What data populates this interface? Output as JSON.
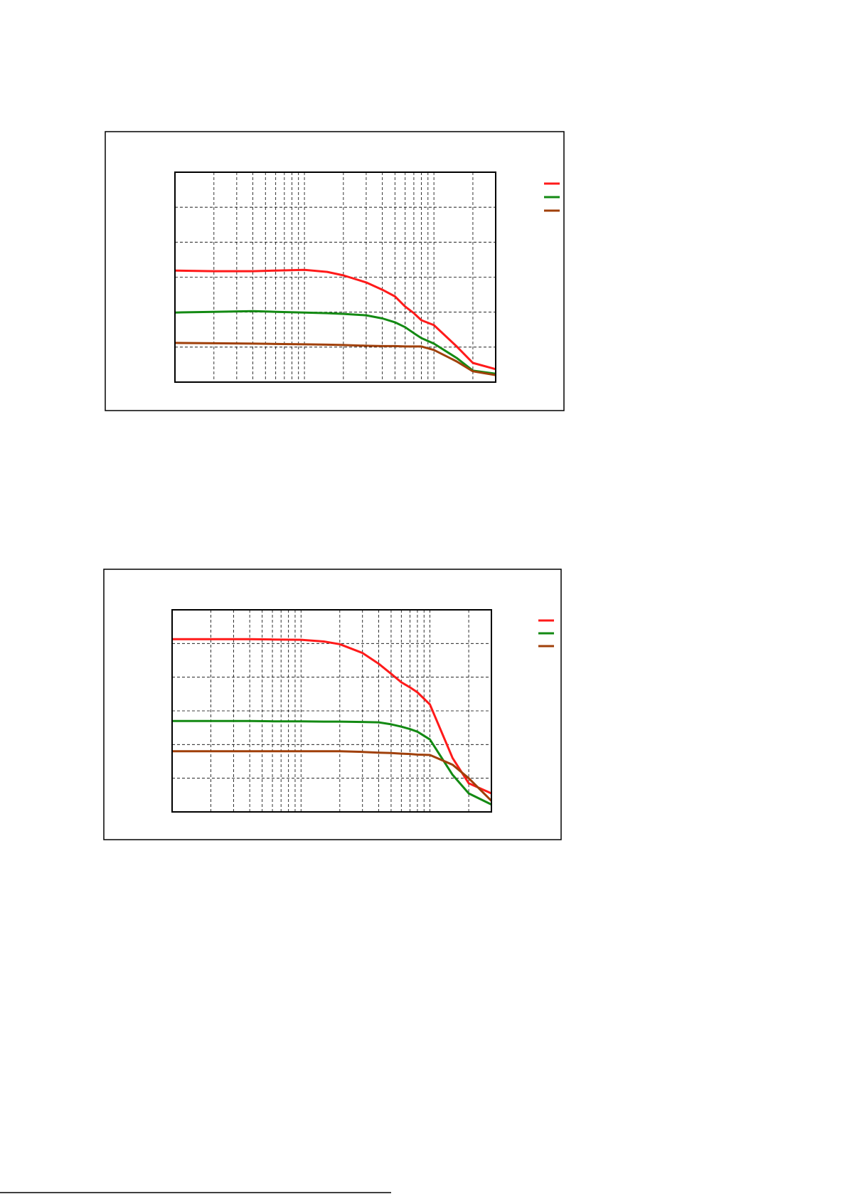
{
  "chart_data": [
    {
      "type": "line",
      "log_x": true,
      "grid": true,
      "legend": "right",
      "xlim": [
        1,
        300
      ],
      "ylim": [
        0,
        6
      ],
      "xticks": [
        2,
        3,
        4,
        5,
        6,
        7,
        8,
        9,
        10,
        20,
        30,
        40,
        50,
        60,
        70,
        80,
        90,
        100,
        200
      ],
      "yticks": [
        1,
        2,
        3,
        4,
        5
      ],
      "x": [
        1,
        2,
        4,
        6,
        10,
        15,
        20,
        30,
        40,
        50,
        60,
        70,
        80,
        100,
        150,
        200,
        300
      ],
      "series": [
        {
          "color": "#ff1a1a",
          "values": [
            3.19,
            3.17,
            3.17,
            3.19,
            3.21,
            3.15,
            3.05,
            2.85,
            2.64,
            2.45,
            2.16,
            1.97,
            1.77,
            1.63,
            1.02,
            0.55,
            0.37
          ]
        },
        {
          "color": "#138a13",
          "values": [
            1.99,
            2.01,
            2.03,
            2.01,
            1.99,
            1.97,
            1.95,
            1.91,
            1.82,
            1.71,
            1.57,
            1.4,
            1.26,
            1.1,
            0.69,
            0.33,
            0.24
          ]
        },
        {
          "color": "#a0400a",
          "values": [
            1.12,
            1.11,
            1.1,
            1.09,
            1.08,
            1.07,
            1.06,
            1.04,
            1.03,
            1.03,
            1.02,
            1.02,
            1.02,
            0.92,
            0.59,
            0.31,
            0.2
          ]
        }
      ]
    },
    {
      "type": "line",
      "log_x": true,
      "grid": true,
      "legend": "right",
      "xlim": [
        1,
        300
      ],
      "ylim": [
        0,
        6
      ],
      "xticks": [
        2,
        3,
        4,
        5,
        6,
        7,
        8,
        9,
        10,
        20,
        30,
        40,
        50,
        60,
        70,
        80,
        90,
        100,
        200
      ],
      "yticks": [
        1,
        2,
        3,
        4,
        5
      ],
      "x": [
        1,
        2,
        4,
        6,
        10,
        15,
        20,
        30,
        40,
        50,
        60,
        70,
        80,
        100,
        150,
        200,
        300
      ],
      "series": [
        {
          "color": "#ff1a1a",
          "values": [
            5.13,
            5.13,
            5.13,
            5.12,
            5.11,
            5.06,
            4.98,
            4.72,
            4.4,
            4.1,
            3.85,
            3.7,
            3.55,
            3.19,
            1.6,
            0.85,
            0.55
          ]
        },
        {
          "color": "#138a13",
          "values": [
            2.7,
            2.7,
            2.7,
            2.69,
            2.69,
            2.68,
            2.68,
            2.67,
            2.66,
            2.6,
            2.53,
            2.46,
            2.38,
            2.15,
            1.1,
            0.55,
            0.22
          ]
        },
        {
          "color": "#a0400a",
          "values": [
            1.8,
            1.8,
            1.8,
            1.8,
            1.8,
            1.8,
            1.8,
            1.78,
            1.76,
            1.75,
            1.73,
            1.72,
            1.7,
            1.69,
            1.4,
            1.0,
            0.33
          ]
        }
      ]
    }
  ]
}
